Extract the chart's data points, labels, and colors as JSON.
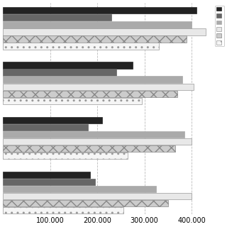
{
  "groups": [
    {
      "values": [
        410000,
        230000,
        400000,
        430000,
        390000,
        330000
      ]
    },
    {
      "values": [
        275000,
        240000,
        380000,
        405000,
        370000,
        295000
      ]
    },
    {
      "values": [
        210000,
        180000,
        385000,
        400000,
        365000,
        265000
      ]
    },
    {
      "values": [
        185000,
        195000,
        325000,
        400000,
        350000,
        255000
      ]
    }
  ],
  "bar_styles": [
    {
      "color": "#222222",
      "hatch": null,
      "edgecolor": "#222222"
    },
    {
      "color": "#666666",
      "hatch": null,
      "edgecolor": "#666666"
    },
    {
      "color": "#aaaaaa",
      "hatch": null,
      "edgecolor": "#aaaaaa"
    },
    {
      "color": "#e8e8e8",
      "hatch": null,
      "edgecolor": "#999999"
    },
    {
      "color": "#cccccc",
      "hatch": "xx",
      "edgecolor": "#888888"
    },
    {
      "color": "#f5f5f5",
      "hatch": "..",
      "edgecolor": "#999999"
    }
  ],
  "xlim": [
    0,
    440000
  ],
  "xticks": [
    100000,
    200000,
    300000,
    400000
  ],
  "xticklabels": [
    "100.000",
    "200.000",
    "300.000",
    "400.000"
  ],
  "grid_color": "#bbbbbb",
  "background_color": "#ffffff",
  "legend_labels": [
    "",
    "",
    "",
    "",
    "",
    ""
  ]
}
